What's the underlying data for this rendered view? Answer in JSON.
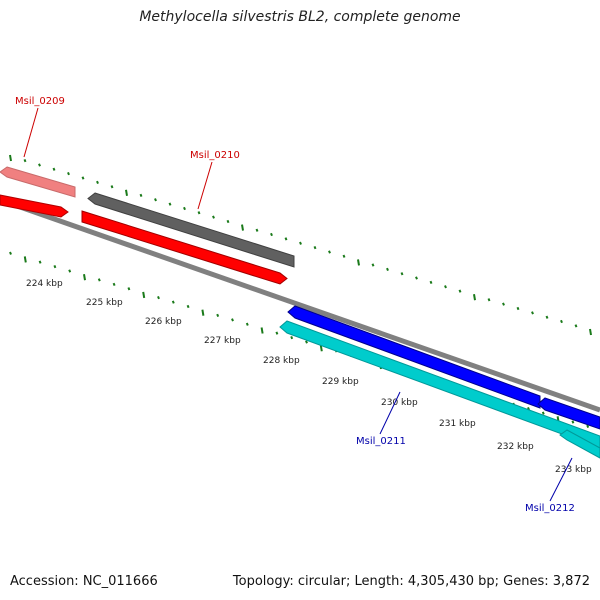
{
  "title": "Methylocella silvestris BL2, complete genome",
  "footer": {
    "accession": "Accession: NC_011666",
    "summary": "Topology: circular; Length: 4,305,430 bp; Genes: 3,872"
  },
  "colors": {
    "forward_cds": "#ff0000",
    "forward_cds_faded": "#f08080",
    "reverse_cds": "#0000ff",
    "reverse_cds_alt": "#00cccc",
    "gene_feature": "#606060",
    "backbone": "#808080",
    "ticks": "#1a7a1a",
    "label_forward": "#cc0000",
    "label_reverse": "#0000aa"
  },
  "ticks": [
    {
      "label": "224 kbp"
    },
    {
      "label": "225 kbp"
    },
    {
      "label": "226 kbp"
    },
    {
      "label": "227 kbp"
    },
    {
      "label": "228 kbp"
    },
    {
      "label": "229 kbp"
    },
    {
      "label": "230 kbp"
    },
    {
      "label": "231 kbp"
    },
    {
      "label": "232 kbp"
    },
    {
      "label": "233 kbp"
    }
  ],
  "genes": [
    {
      "label": "Msil_0209",
      "strand": "forward"
    },
    {
      "label": "Msil_0210",
      "strand": "forward"
    },
    {
      "label": "Msil_0211",
      "strand": "reverse"
    },
    {
      "label": "Msil_0212",
      "strand": "reverse"
    }
  ]
}
